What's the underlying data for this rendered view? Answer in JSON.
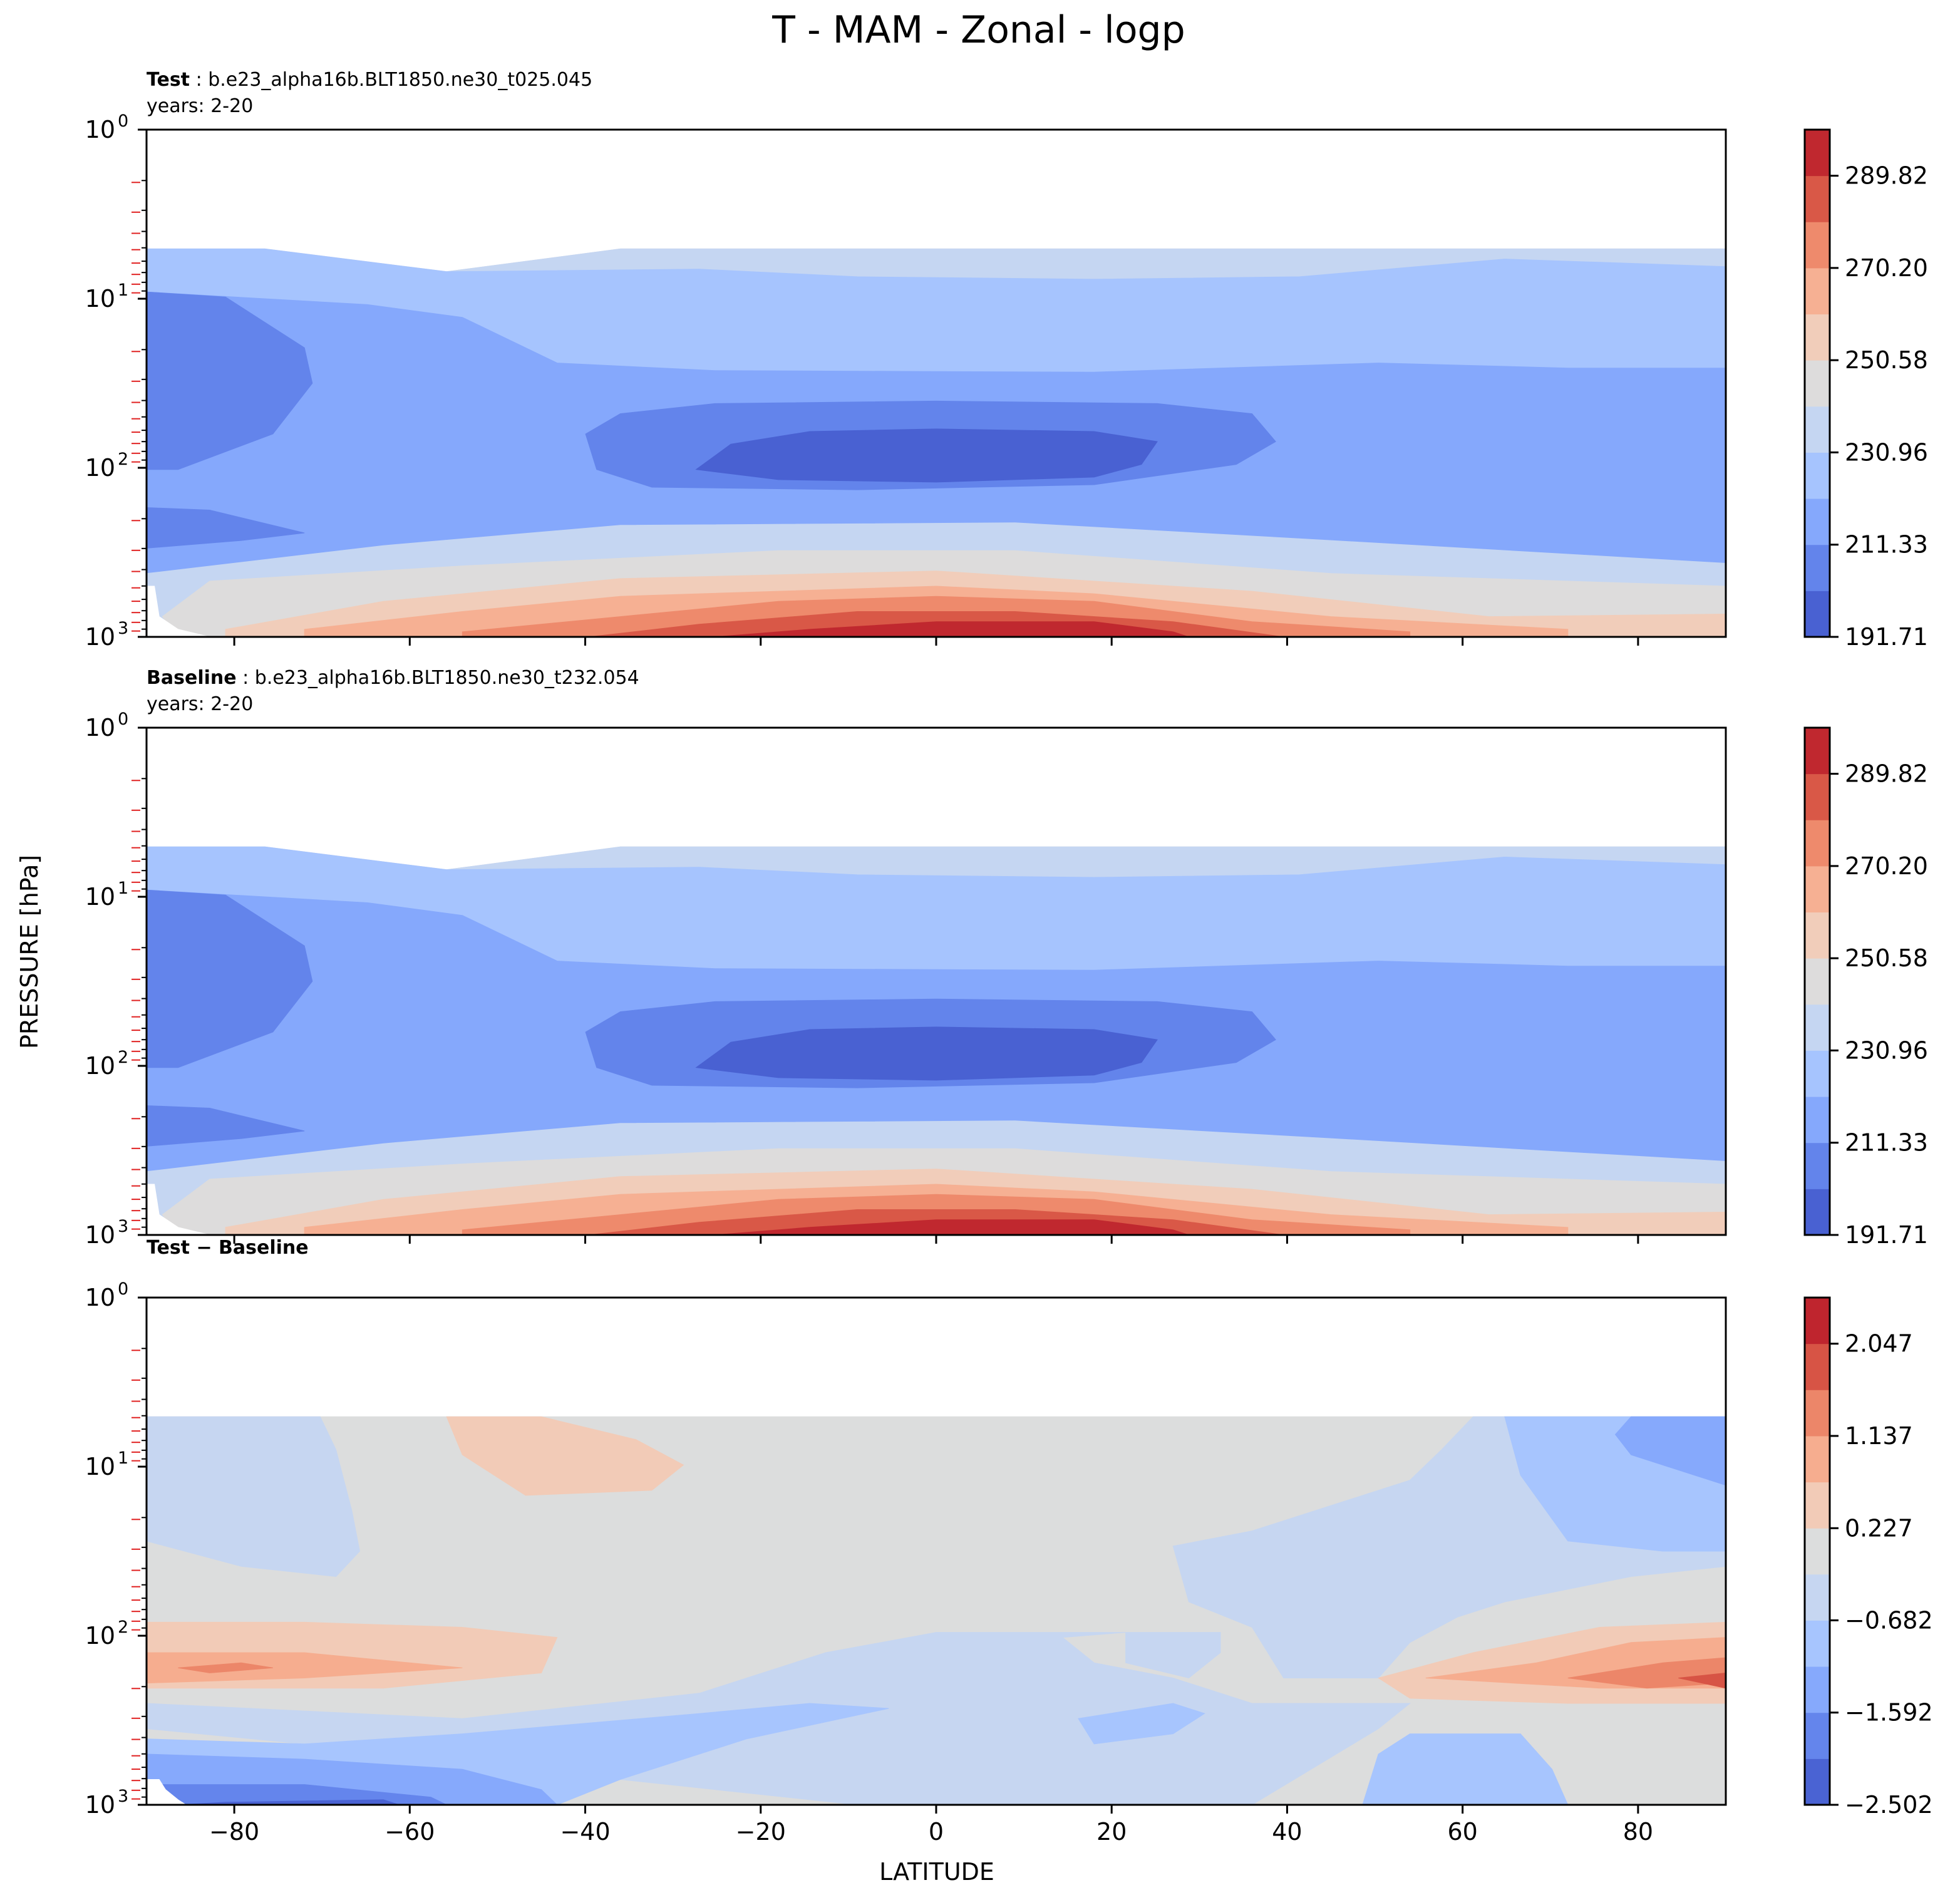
{
  "title": "T - MAM - Zonal - logp",
  "xlabel": "LATITUDE",
  "ylabel": "PRESSURE [hPa]",
  "colors": {
    "coolwarm": [
      "#4961d2",
      "#6384eb",
      "#85a8fc",
      "#a6c4fe",
      "#c5d6f2",
      "#dddcdc",
      "#f1cdba",
      "#f6b093",
      "#ee8a6c",
      "#d95847",
      "#c0282f"
    ],
    "diff": [
      "#4a63d3",
      "#6485ec",
      "#86a9fc",
      "#a7c5fe",
      "#c6d6f1",
      "#dcdddd",
      "#f2cbb7",
      "#f6ad8f",
      "#ec8669",
      "#d75445",
      "#bf252e"
    ],
    "void": "#ffffff"
  },
  "chart_data": [
    {
      "type": "contourf",
      "panel": "test",
      "label_bold": "Test",
      "label_text": ": b.e23_alpha16b.BLT1850.ne30_t025.045",
      "years": "years: 2-20",
      "xlim": [
        -90,
        90
      ],
      "ylim": [
        1000,
        1
      ],
      "yscale": "log",
      "x_ticks": [
        -80,
        -60,
        -40,
        -20,
        0,
        20,
        40,
        60,
        80
      ],
      "x_tick_labels": [
        "−80",
        "−60",
        "−40",
        "−20",
        "0",
        "20",
        "40",
        "60",
        "80"
      ],
      "colorbar": {
        "levels": [
          191.71,
          201.52,
          211.33,
          221.14,
          230.96,
          240.77,
          250.58,
          260.39,
          270.2,
          280.01,
          289.82,
          299.63
        ],
        "tick_values": [
          191.71,
          211.33,
          230.96,
          250.58,
          270.2,
          289.82
        ],
        "tick_labels": [
          "191.71",
          "211.33",
          "230.96",
          "250.58",
          "270.20",
          "289.82"
        ]
      }
    },
    {
      "type": "contourf",
      "panel": "baseline",
      "label_bold": "Baseline",
      "label_text": ": b.e23_alpha16b.BLT1850.ne30_t232.054",
      "years": "years: 2-20",
      "xlim": [
        -90,
        90
      ],
      "ylim": [
        1000,
        1
      ],
      "yscale": "log",
      "x_ticks": [
        -80,
        -60,
        -40,
        -20,
        0,
        20,
        40,
        60,
        80
      ],
      "x_tick_labels": [
        "−80",
        "−60",
        "−40",
        "−20",
        "0",
        "20",
        "40",
        "60",
        "80"
      ],
      "colorbar": {
        "levels": [
          191.71,
          201.52,
          211.33,
          221.14,
          230.96,
          240.77,
          250.58,
          260.39,
          270.2,
          280.01,
          289.82,
          299.63
        ],
        "tick_values": [
          191.71,
          211.33,
          230.96,
          250.58,
          270.2,
          289.82
        ],
        "tick_labels": [
          "191.71",
          "211.33",
          "230.96",
          "250.58",
          "270.20",
          "289.82"
        ]
      }
    },
    {
      "type": "contourf",
      "panel": "difference",
      "label_bold": "Test − Baseline",
      "label_text": "",
      "years": "",
      "xlim": [
        -90,
        90
      ],
      "ylim": [
        1000,
        1
      ],
      "yscale": "log",
      "x_ticks": [
        -80,
        -60,
        -40,
        -20,
        0,
        20,
        40,
        60,
        80
      ],
      "x_tick_labels": [
        "−80",
        "−60",
        "−40",
        "−20",
        "0",
        "20",
        "40",
        "60",
        "80"
      ],
      "colorbar": {
        "levels": [
          -2.502,
          -2.047,
          -1.592,
          -1.137,
          -0.682,
          -0.227,
          0.227,
          0.682,
          1.137,
          1.592,
          2.047,
          2.502
        ],
        "tick_values": [
          -2.502,
          -1.592,
          -0.682,
          0.227,
          1.137,
          2.047
        ],
        "tick_labels": [
          "−2.502",
          "−1.592",
          "−0.682",
          "0.227",
          "1.137",
          "2.047"
        ]
      }
    }
  ],
  "y_tick_labels": {
    "p1": "10",
    "p1_exp": "0",
    "p10": "10",
    "p10_exp": "1",
    "p100": "10",
    "p100_exp": "2",
    "p1000": "10",
    "p1000_exp": "3"
  }
}
